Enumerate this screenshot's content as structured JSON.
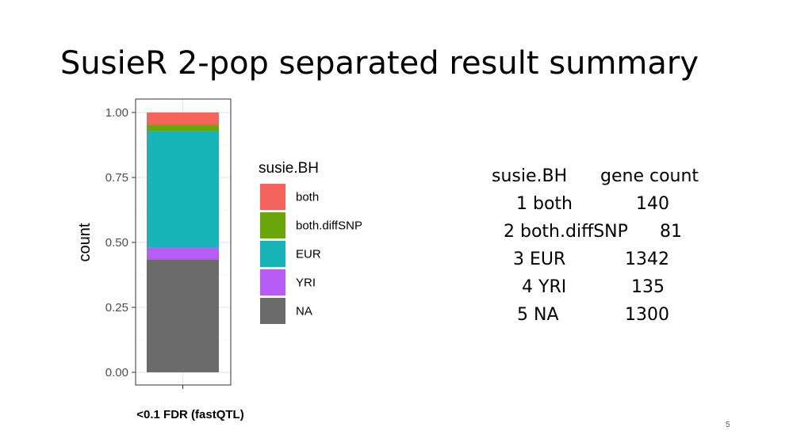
{
  "slide": {
    "title": "SusieR 2-pop separated result summary",
    "page_number": "5"
  },
  "chart_data": {
    "type": "bar",
    "stacked": true,
    "categories": [
      "<0.1 FDR (fastQTL)"
    ],
    "xlabel": "<0.1 FDR (fastQTL)",
    "ylabel": "count",
    "ylim": [
      0,
      1
    ],
    "yticks": [
      "0.00",
      "0.25",
      "0.50",
      "0.75",
      "1.00"
    ],
    "grid": true,
    "legend_title": "susie.BH",
    "legend_position": "right",
    "series": [
      {
        "name": "NA",
        "color": "#6b6b6b",
        "values": [
          0.435
        ]
      },
      {
        "name": "YRI",
        "color": "#b95cf6",
        "values": [
          0.045
        ]
      },
      {
        "name": "EUR",
        "color": "#17b5b8",
        "values": [
          0.447
        ]
      },
      {
        "name": "both.diffSNP",
        "color": "#6aa50a",
        "values": [
          0.027
        ]
      },
      {
        "name": "both",
        "color": "#f4645c",
        "values": [
          0.046
        ]
      }
    ],
    "legend_order": [
      "both",
      "both.diffSNP",
      "EUR",
      "YRI",
      "NA"
    ]
  },
  "summary_table": {
    "headers": [
      "susie.BH",
      "gene count"
    ],
    "rows": [
      {
        "index": "1",
        "label": "both",
        "count": "140"
      },
      {
        "index": "2",
        "label": "both.diffSNP",
        "count": "81"
      },
      {
        "index": "3",
        "label": "EUR",
        "count": "1342"
      },
      {
        "index": "4",
        "label": "YRI",
        "count": "135"
      },
      {
        "index": "5",
        "label": "NA",
        "count": "1300"
      }
    ]
  }
}
